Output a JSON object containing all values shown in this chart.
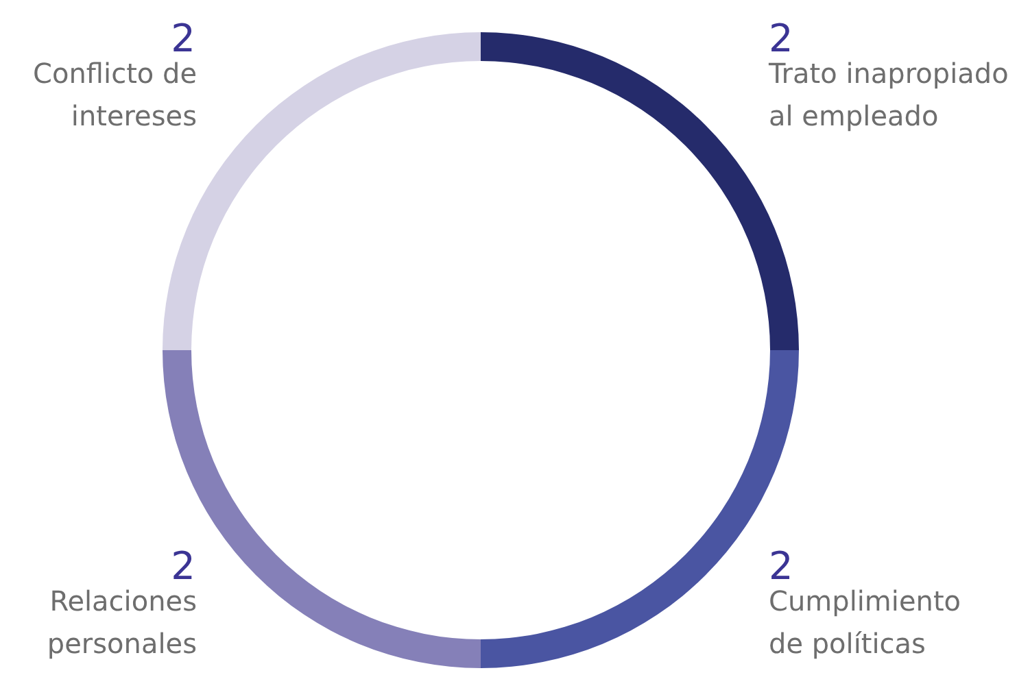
{
  "chart_data": {
    "type": "donut",
    "categories": [
      "Trato inapropiado\nal empleado",
      "Cumplimiento\nde políticas",
      "Relaciones\npersonales",
      "Conflicto de\nintereses"
    ],
    "values": [
      2,
      2,
      2,
      2
    ],
    "colors": [
      "#252b6b",
      "#4a55a2",
      "#8580b8",
      "#d5d2e5"
    ],
    "data_labels": true
  }
}
